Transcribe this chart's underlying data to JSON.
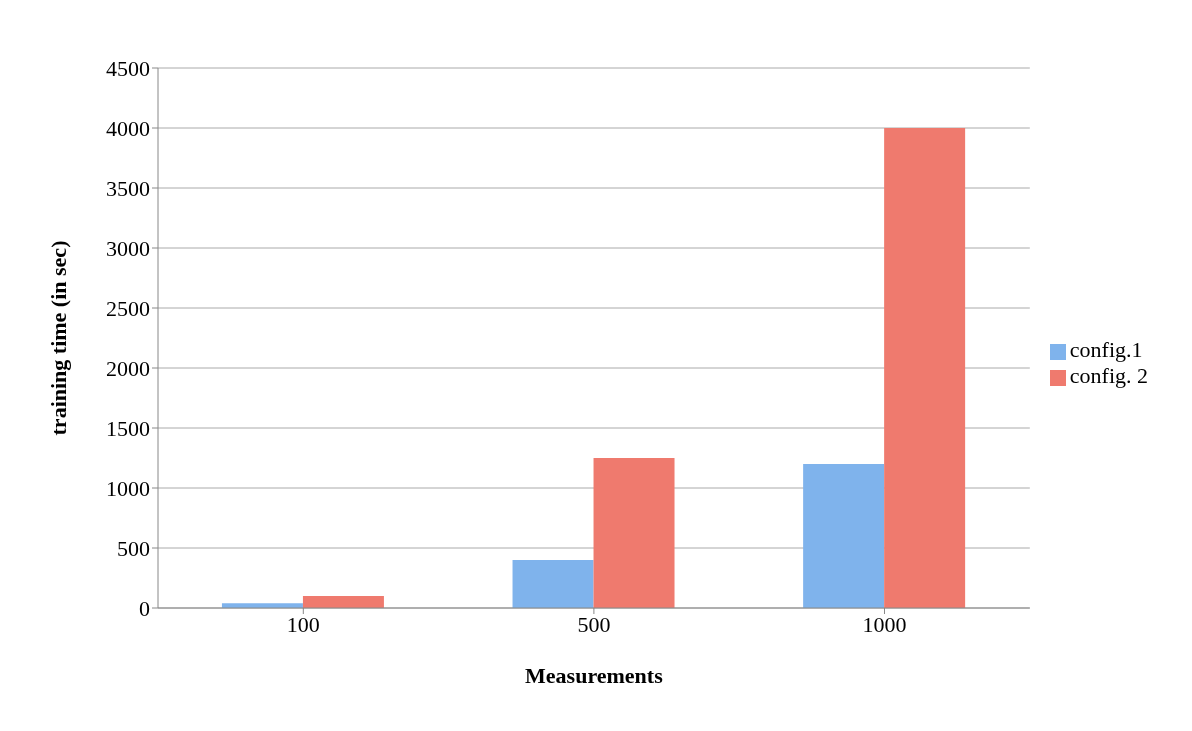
{
  "chart_data": {
    "type": "bar",
    "xlabel": "Measurements",
    "ylabel": "training time (in sec)",
    "categories": [
      "100",
      "500",
      "1000"
    ],
    "series": [
      {
        "name": "config.1",
        "color": "#7fb3ec",
        "values": [
          40,
          400,
          1200
        ]
      },
      {
        "name": "config. 2",
        "color": "#ef7a6e",
        "values": [
          100,
          1250,
          4000
        ]
      }
    ],
    "ylim": [
      0,
      4500
    ],
    "yticks": [
      0,
      500,
      1000,
      1500,
      2000,
      2500,
      3000,
      3500,
      4000,
      4500
    ],
    "grid": "y",
    "legend": "right"
  }
}
